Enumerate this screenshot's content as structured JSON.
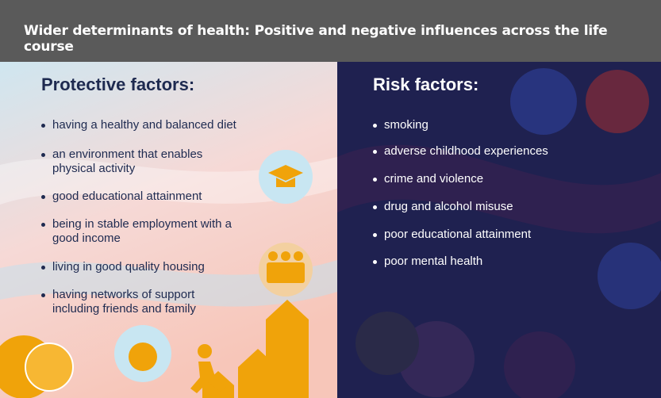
{
  "header": {
    "title": "Wider determinants of health: Positive and negative influences across the life course"
  },
  "protective": {
    "heading": "Protective factors:",
    "items": [
      [
        "having a healthy and balanced diet"
      ],
      [
        "an environment that enables",
        "physical activity"
      ],
      [
        "good educational attainment"
      ],
      [
        "being in stable employment with a",
        "good income"
      ],
      [
        "living in good quality housing"
      ],
      [
        "having networks of support",
        "including friends and family"
      ]
    ]
  },
  "risk": {
    "heading": "Risk factors:",
    "items": [
      [
        "smoking"
      ],
      [
        "adverse childhood experiences"
      ],
      [
        "crime and violence"
      ],
      [
        "drug and alcohol misuse"
      ],
      [
        "poor educational attainment"
      ],
      [
        "poor mental health"
      ]
    ]
  }
}
